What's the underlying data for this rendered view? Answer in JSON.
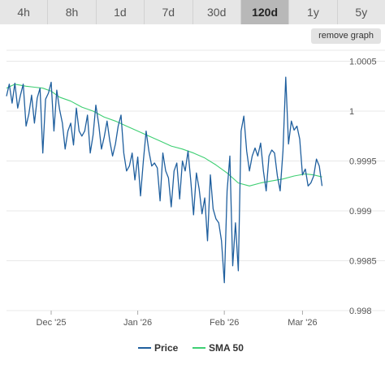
{
  "tabs": [
    {
      "label": "4h",
      "active": false
    },
    {
      "label": "8h",
      "active": false
    },
    {
      "label": "1d",
      "active": false
    },
    {
      "label": "7d",
      "active": false
    },
    {
      "label": "30d",
      "active": false
    },
    {
      "label": "120d",
      "active": true
    },
    {
      "label": "1y",
      "active": false
    },
    {
      "label": "5y",
      "active": false
    }
  ],
  "remove_graph_label": "remove graph",
  "colors": {
    "price": "#1f5f9e",
    "sma": "#3ecf73",
    "grid": "#e8e8e8",
    "tab_active": "#b8b8b8",
    "tab_bg": "#e6e6e6"
  },
  "chart_data": {
    "type": "line",
    "title": "",
    "xlabel": "",
    "ylabel": "",
    "ylim": [
      0.998,
      1.00061
    ],
    "y_ticks": [
      {
        "value": 0.998,
        "label": "0.998"
      },
      {
        "value": 0.9985,
        "label": "0.9985"
      },
      {
        "value": 0.999,
        "label": "0.999"
      },
      {
        "value": 0.9995,
        "label": "0.9995"
      },
      {
        "value": 1.0,
        "label": "1"
      },
      {
        "value": 1.0005,
        "label": "1.0005"
      }
    ],
    "x_start": "2025-11-15",
    "x_end": "2026-03-16",
    "x_ticks": [
      {
        "date": "2025-12-01",
        "label": "Dec '25"
      },
      {
        "date": "2026-01-01",
        "label": "Jan '26"
      },
      {
        "date": "2026-02-01",
        "label": "Feb '26"
      },
      {
        "date": "2026-03-01",
        "label": "Mar '26"
      }
    ],
    "legend_position": "bottom",
    "series": [
      {
        "name": "Price",
        "points": [
          [
            "2025-11-15",
            1.00015
          ],
          [
            "2025-11-16",
            1.00027
          ],
          [
            "2025-11-17",
            1.00008
          ],
          [
            "2025-11-18",
            1.00028
          ],
          [
            "2025-11-19",
            1.00003
          ],
          [
            "2025-11-20",
            1.00016
          ],
          [
            "2025-11-21",
            1.00027
          ],
          [
            "2025-11-22",
            0.99985
          ],
          [
            "2025-11-23",
            0.99997
          ],
          [
            "2025-11-24",
            1.00016
          ],
          [
            "2025-11-25",
            0.99988
          ],
          [
            "2025-11-26",
            1.00013
          ],
          [
            "2025-11-27",
            1.00023
          ],
          [
            "2025-11-28",
            0.99958
          ],
          [
            "2025-11-29",
            1.00012
          ],
          [
            "2025-11-30",
            1.00018
          ],
          [
            "2025-12-01",
            1.00029
          ],
          [
            "2025-12-02",
            0.9998
          ],
          [
            "2025-12-03",
            1.00021
          ],
          [
            "2025-12-04",
            1.00002
          ],
          [
            "2025-12-05",
            0.99988
          ],
          [
            "2025-12-06",
            0.99962
          ],
          [
            "2025-12-07",
            0.9998
          ],
          [
            "2025-12-08",
            0.99988
          ],
          [
            "2025-12-09",
            0.99966
          ],
          [
            "2025-12-10",
            1.00003
          ],
          [
            "2025-12-11",
            0.9998
          ],
          [
            "2025-12-12",
            0.99975
          ],
          [
            "2025-12-13",
            0.9998
          ],
          [
            "2025-12-14",
            0.99996
          ],
          [
            "2025-12-15",
            0.99958
          ],
          [
            "2025-12-16",
            0.99976
          ],
          [
            "2025-12-17",
            1.00006
          ],
          [
            "2025-12-18",
            0.99987
          ],
          [
            "2025-12-19",
            0.99962
          ],
          [
            "2025-12-20",
            0.99974
          ],
          [
            "2025-12-21",
            0.9999
          ],
          [
            "2025-12-22",
            0.9997
          ],
          [
            "2025-12-23",
            0.99955
          ],
          [
            "2025-12-24",
            0.99967
          ],
          [
            "2025-12-25",
            0.99985
          ],
          [
            "2025-12-26",
            0.99996
          ],
          [
            "2025-12-27",
            0.99958
          ],
          [
            "2025-12-28",
            0.9994
          ],
          [
            "2025-12-29",
            0.99945
          ],
          [
            "2025-12-30",
            0.99958
          ],
          [
            "2025-12-31",
            0.99931
          ],
          [
            "2026-01-01",
            0.99954
          ],
          [
            "2026-01-02",
            0.99915
          ],
          [
            "2026-01-03",
            0.9995
          ],
          [
            "2026-01-04",
            0.9998
          ],
          [
            "2026-01-05",
            0.9996
          ],
          [
            "2026-01-06",
            0.99945
          ],
          [
            "2026-01-07",
            0.99948
          ],
          [
            "2026-01-08",
            0.99943
          ],
          [
            "2026-01-09",
            0.9991
          ],
          [
            "2026-01-10",
            0.99958
          ],
          [
            "2026-01-11",
            0.9994
          ],
          [
            "2026-01-12",
            0.99933
          ],
          [
            "2026-01-13",
            0.99904
          ],
          [
            "2026-01-14",
            0.9994
          ],
          [
            "2026-01-15",
            0.99948
          ],
          [
            "2026-01-16",
            0.99912
          ],
          [
            "2026-01-17",
            0.9995
          ],
          [
            "2026-01-18",
            0.9994
          ],
          [
            "2026-01-19",
            0.9996
          ],
          [
            "2026-01-20",
            0.9993
          ],
          [
            "2026-01-21",
            0.99896
          ],
          [
            "2026-01-22",
            0.99938
          ],
          [
            "2026-01-23",
            0.99922
          ],
          [
            "2026-01-24",
            0.99897
          ],
          [
            "2026-01-25",
            0.99913
          ],
          [
            "2026-01-26",
            0.9987
          ],
          [
            "2026-01-27",
            0.99936
          ],
          [
            "2026-01-28",
            0.99902
          ],
          [
            "2026-01-29",
            0.99892
          ],
          [
            "2026-01-30",
            0.99888
          ],
          [
            "2026-01-31",
            0.9987
          ],
          [
            "2026-02-01",
            0.99828
          ],
          [
            "2026-02-02",
            0.9992
          ],
          [
            "2026-02-03",
            0.99955
          ],
          [
            "2026-02-04",
            0.99845
          ],
          [
            "2026-02-05",
            0.99888
          ],
          [
            "2026-02-06",
            0.9984
          ],
          [
            "2026-02-07",
            0.9998
          ],
          [
            "2026-02-08",
            0.99995
          ],
          [
            "2026-02-09",
            0.9996
          ],
          [
            "2026-02-10",
            0.9994
          ],
          [
            "2026-02-11",
            0.99955
          ],
          [
            "2026-02-12",
            0.99963
          ],
          [
            "2026-02-13",
            0.99955
          ],
          [
            "2026-02-14",
            0.99968
          ],
          [
            "2026-02-15",
            0.9994
          ],
          [
            "2026-02-16",
            0.9992
          ],
          [
            "2026-02-17",
            0.99955
          ],
          [
            "2026-02-18",
            0.99961
          ],
          [
            "2026-02-19",
            0.99958
          ],
          [
            "2026-02-20",
            0.99935
          ],
          [
            "2026-02-21",
            0.9992
          ],
          [
            "2026-02-22",
            0.9996
          ],
          [
            "2026-02-23",
            1.00034
          ],
          [
            "2026-02-24",
            0.99967
          ],
          [
            "2026-02-25",
            0.9999
          ],
          [
            "2026-02-26",
            0.99981
          ],
          [
            "2026-02-27",
            0.99985
          ],
          [
            "2026-02-28",
            0.99972
          ],
          [
            "2026-03-01",
            0.99936
          ],
          [
            "2026-03-02",
            0.99942
          ],
          [
            "2026-03-03",
            0.99925
          ],
          [
            "2026-03-04",
            0.99928
          ],
          [
            "2026-03-05",
            0.99935
          ],
          [
            "2026-03-06",
            0.99952
          ],
          [
            "2026-03-07",
            0.99945
          ],
          [
            "2026-03-08",
            0.99925
          ]
        ]
      },
      {
        "name": "SMA 50",
        "points": [
          [
            "2025-11-15",
            1.00023
          ],
          [
            "2025-11-18",
            1.00027
          ],
          [
            "2025-11-22",
            1.00025
          ],
          [
            "2025-11-25",
            1.00024
          ],
          [
            "2025-11-28",
            1.00023
          ],
          [
            "2025-12-01",
            1.0002
          ],
          [
            "2025-12-04",
            1.00014
          ],
          [
            "2025-12-08",
            1.0001
          ],
          [
            "2025-12-12",
            1.00004
          ],
          [
            "2025-12-16",
            1.0
          ],
          [
            "2025-12-20",
            0.99994
          ],
          [
            "2025-12-24",
            0.9999
          ],
          [
            "2025-12-28",
            0.99985
          ],
          [
            "2026-01-01",
            0.9998
          ],
          [
            "2026-01-05",
            0.99975
          ],
          [
            "2026-01-09",
            0.9997
          ],
          [
            "2026-01-13",
            0.99965
          ],
          [
            "2026-01-17",
            0.99962
          ],
          [
            "2026-01-21",
            0.99958
          ],
          [
            "2026-01-25",
            0.99953
          ],
          [
            "2026-01-29",
            0.99946
          ],
          [
            "2026-02-02",
            0.99938
          ],
          [
            "2026-02-06",
            0.99928
          ],
          [
            "2026-02-10",
            0.99925
          ],
          [
            "2026-02-14",
            0.99928
          ],
          [
            "2026-02-18",
            0.9993
          ],
          [
            "2026-02-22",
            0.99932
          ],
          [
            "2026-02-26",
            0.99935
          ],
          [
            "2026-03-02",
            0.99937
          ],
          [
            "2026-03-05",
            0.99936
          ],
          [
            "2026-03-08",
            0.99934
          ]
        ]
      }
    ]
  }
}
